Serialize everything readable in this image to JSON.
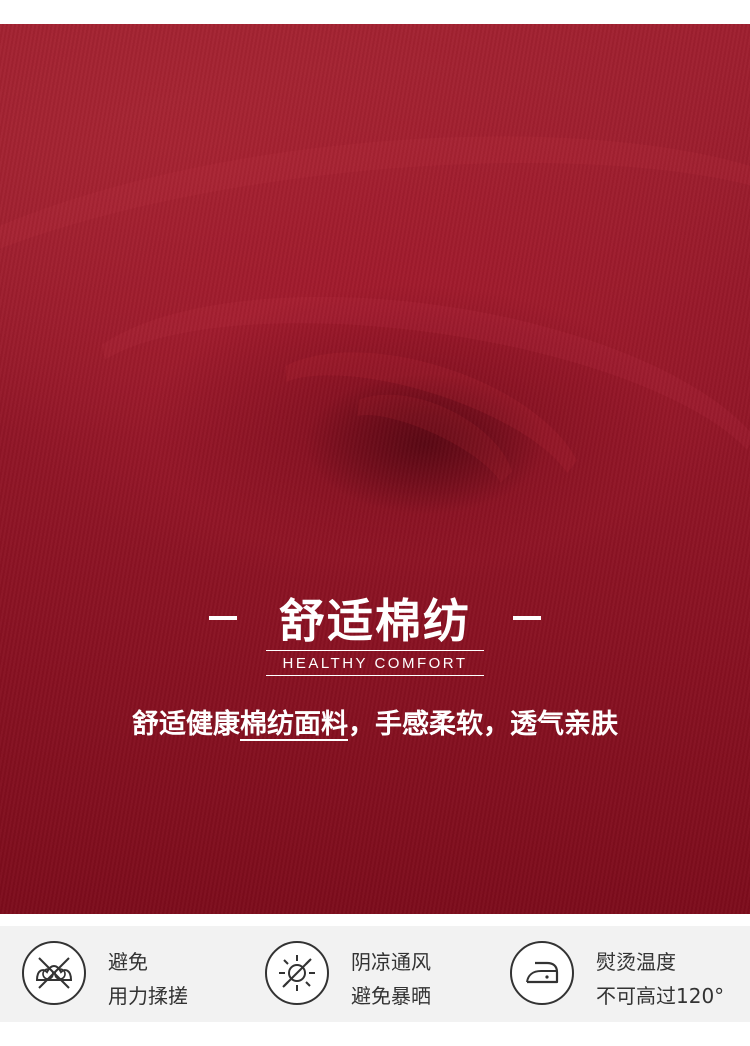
{
  "hero": {
    "dash_left": "—",
    "title": "舒适棉纺",
    "dash_right": "—",
    "subtitle": "HEALTHY COMFORT",
    "description_part1": "舒适健康",
    "description_underlined": "棉纺面料",
    "description_part2": "，手感柔软，透气亲肤"
  },
  "care": {
    "items": [
      {
        "icon": "no-rubbing-icon",
        "line1": "避免",
        "line2": "用力揉搓"
      },
      {
        "icon": "sun-shade-icon",
        "line1": "阴凉通风",
        "line2": "避免暴晒"
      },
      {
        "icon": "iron-icon",
        "line1": "熨烫温度",
        "line2": "不可高过120°"
      }
    ]
  },
  "colors": {
    "fabric": "#9a1a2c",
    "text_light": "#ffffff",
    "text_dark": "#333333",
    "care_bg": "#f2f2f2"
  }
}
